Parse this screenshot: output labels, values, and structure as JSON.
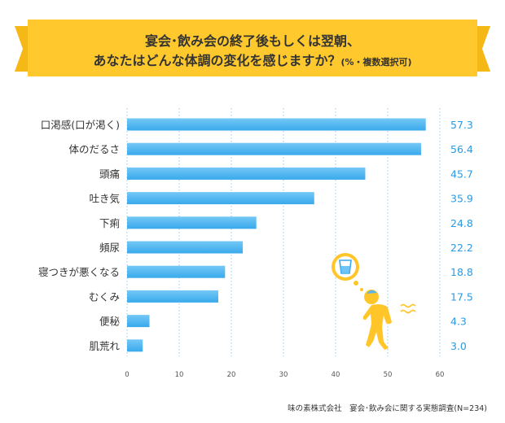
{
  "header": {
    "title_line1": "宴会･飲み会の終了後もしくは翌朝、",
    "title_line2": "あなたはどんな体調の変化を感じますか？",
    "title_note": "(%・複数選択可)"
  },
  "source": "味の素株式会社　宴会･飲み会に関する実態調査(N=234)",
  "colors": {
    "banner": "#ffc92e",
    "bar_top": "#6ec5f5",
    "bar_bottom": "#38aaed",
    "value_text": "#2b9ae0",
    "grid": "#8ecbf0",
    "figure": "#ffc529"
  },
  "illustration": {
    "icons": [
      "water-glass-icon",
      "sick-person-icon",
      "dizzy-lines-icon"
    ]
  },
  "chart_data": {
    "type": "bar",
    "orientation": "horizontal",
    "categories": [
      "口渇感(口が渇く)",
      "体のだるさ",
      "頭痛",
      "吐き気",
      "下痢",
      "頻尿",
      "寝つきが悪くなる",
      "むくみ",
      "便秘",
      "肌荒れ"
    ],
    "values": [
      57.3,
      56.4,
      45.7,
      35.9,
      24.8,
      22.2,
      18.8,
      17.5,
      4.3,
      3.0
    ],
    "value_labels": [
      "57.3",
      "56.4",
      "45.7",
      "35.9",
      "24.8",
      "22.2",
      "18.8",
      "17.5",
      "4.3",
      "3.0"
    ],
    "xlim": [
      0,
      60
    ],
    "xticks": [
      0,
      10,
      20,
      30,
      40,
      50,
      60
    ],
    "grid": "vertical dotted"
  }
}
